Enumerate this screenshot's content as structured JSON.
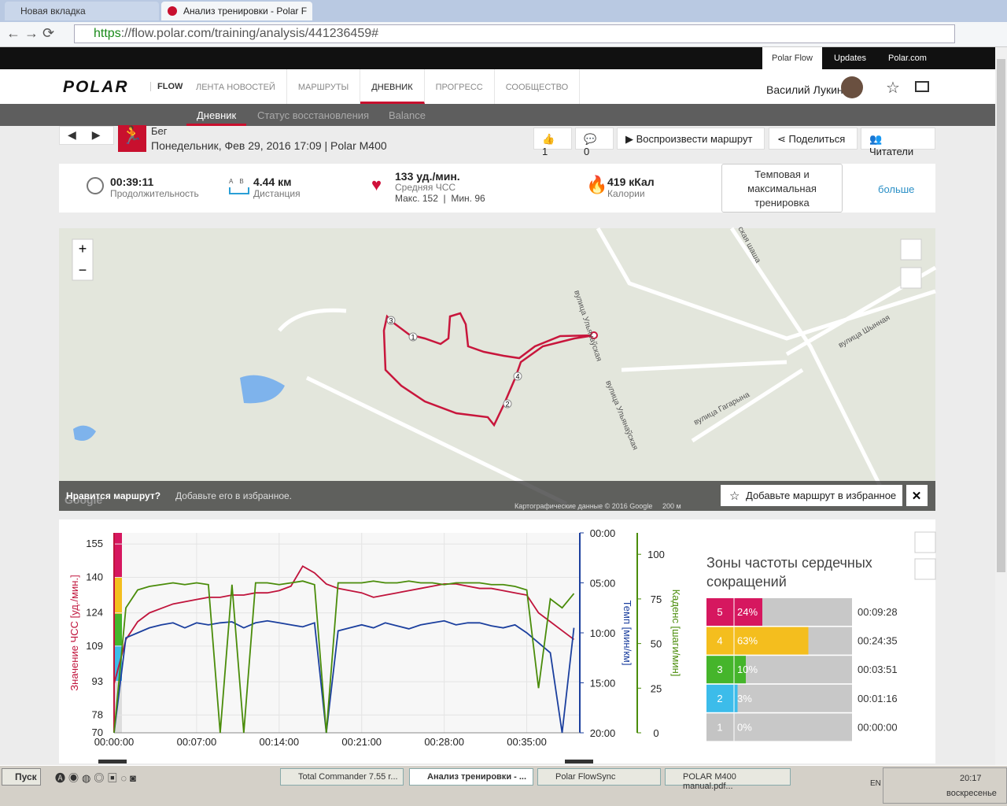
{
  "browser": {
    "tabs": [
      "Новая вкладка",
      "Анализ тренировки - Polar F"
    ],
    "url_scheme": "https",
    "url_rest": "://flow.polar.com/training/analysis/441236459#"
  },
  "top_links": [
    "Polar Flow",
    "Updates",
    "Polar.com"
  ],
  "nav": {
    "logo": "POLAR",
    "product": "FLOW",
    "items": [
      "ЛЕНТА НОВОСТЕЙ",
      "МАРШРУТЫ",
      "ДНЕВНИК",
      "ПРОГРЕСС",
      "СООБЩЕСТВО"
    ],
    "user": "Василий Лукин"
  },
  "subnav": [
    "Дневник",
    "Статус восстановления",
    "Balance"
  ],
  "training": {
    "sport": "Бег",
    "date": "Понедельник, Фев 29, 2016 17:09 | Polar M400",
    "likes": 1,
    "comments": 0,
    "buttons": [
      "Воспроизвести маршрут",
      "Поделиться",
      "Читатели"
    ]
  },
  "summary": {
    "duration": {
      "value": "00:39:11",
      "label": "Продолжительность"
    },
    "distance": {
      "value": "4.44 км",
      "label": "Дистанция",
      "icon_a": "A",
      "icon_b": "B"
    },
    "hr": {
      "value": "133 уд./мин.",
      "label": "Средняя ЧСС",
      "minmax": "Макс. 152  |  Мин. 96"
    },
    "calories": {
      "value": "419 кКал",
      "label": "Калории"
    },
    "target": "Темповая и максимальная тренировка",
    "more": "больше"
  },
  "map": {
    "streets": [
      "ская шаша",
      "вулица Шынная",
      "вулица Гагарына",
      "вулица Ульянаўская",
      "вулица Ульянаўская"
    ],
    "lap_markers": [
      "1",
      "2",
      "3",
      "4"
    ],
    "like_prompt": "Нравится маршрут?",
    "like_hint": "Добавьте его в избранное.",
    "add_favorite": "Добавьте маршрут в избранное",
    "attribution": "Картографические данные © 2016 Google",
    "scale": "200 м",
    "google": "Google"
  },
  "chart_data": {
    "type": "line",
    "x": [
      0,
      1,
      2,
      3,
      4,
      5,
      6,
      7,
      8,
      9,
      10,
      11,
      12,
      13,
      14,
      15,
      16,
      17,
      18,
      19,
      20,
      21,
      22,
      23,
      24,
      25,
      26,
      27,
      28,
      29,
      30,
      31,
      32,
      33,
      34,
      35,
      36,
      37,
      38,
      39
    ],
    "series": [
      {
        "color": "#c0143c",
        "values": [
          92,
          112,
          120,
          124,
          126,
          128,
          129,
          130,
          131,
          131,
          132,
          132,
          133,
          133,
          134,
          136,
          145,
          142,
          137,
          135,
          134,
          133,
          131,
          132,
          133,
          134,
          135,
          136,
          137,
          137,
          136,
          135,
          135,
          134,
          133,
          132,
          124,
          120,
          116,
          112
        ]
      },
      {
        "color": "#1b3f9e",
        "axis": "y2",
        "values": [
          20,
          10.5,
          10,
          9.5,
          9.2,
          9,
          9.5,
          9,
          9.2,
          9,
          8.9,
          9.5,
          9,
          8.8,
          9,
          9.2,
          9.4,
          9,
          20,
          9.8,
          9.5,
          9.2,
          9.5,
          9,
          9.3,
          9.6,
          9.2,
          9,
          8.8,
          9.2,
          9,
          9,
          9.3,
          9.5,
          9.2,
          10,
          11,
          12,
          20,
          9.5
        ]
      },
      {
        "color": "#4a8c0a",
        "axis": "y3",
        "values": [
          0,
          70,
          80,
          82,
          83,
          84,
          83,
          84,
          83,
          0,
          83,
          0,
          84,
          84,
          83,
          84,
          85,
          83,
          0,
          84,
          84,
          84,
          85,
          84,
          84,
          85,
          84,
          84,
          83,
          84,
          84,
          84,
          83,
          83,
          82,
          80,
          25,
          75,
          70,
          78
        ]
      }
    ],
    "xlim": [
      0,
      39.5
    ],
    "xticks": [
      {
        "value": 0,
        "label": "00:00:00"
      },
      {
        "value": 7,
        "label": "00:07:00"
      },
      {
        "value": 14,
        "label": "00:14:00"
      },
      {
        "value": 21,
        "label": "00:21:00"
      },
      {
        "value": 28,
        "label": "00:28:00"
      },
      {
        "value": 35,
        "label": "00:35:00"
      }
    ],
    "ylim": [
      70,
      160
    ],
    "yticks": [
      70,
      78,
      93,
      109,
      124,
      140,
      155
    ],
    "y2lim": [
      20,
      0
    ],
    "y2ticks": [
      {
        "value": 0,
        "label": "00:00"
      },
      {
        "value": 5,
        "label": "05:00"
      },
      {
        "value": 10,
        "label": "10:00"
      },
      {
        "value": 15,
        "label": "15:00"
      },
      {
        "value": 20,
        "label": "20:00"
      }
    ],
    "y3lim": [
      0,
      112
    ],
    "y3ticks": [
      0,
      25,
      50,
      75,
      100
    ],
    "ylabel": "Значение ЧСС [уд./мин.]",
    "y2label": "Темп [мин/км]",
    "y3label": "Каденс [шаги/мин]",
    "grid": true
  },
  "zones": {
    "title": "Зоны частоты сердечных сокращений",
    "xlim": [
      0,
      100
    ],
    "rows": [
      {
        "zone": 5,
        "percent": 24,
        "percent_label": "24%",
        "time": "00:09:28",
        "color": "#d6175f"
      },
      {
        "zone": 4,
        "percent": 63,
        "percent_label": "63%",
        "time": "00:24:35",
        "color": "#f4be1e"
      },
      {
        "zone": 3,
        "percent": 10,
        "percent_label": "10%",
        "time": "00:03:51",
        "color": "#45b52b"
      },
      {
        "zone": 2,
        "percent": 3,
        "percent_label": "3%",
        "time": "00:01:16",
        "color": "#3cbcea"
      },
      {
        "zone": 1,
        "percent": 0,
        "percent_label": "0%",
        "time": "00:00:00",
        "color": "#c4c4c4"
      }
    ]
  },
  "taskbar": {
    "start": "Пуск",
    "tasks": [
      "Total Commander 7.55 r...",
      "Анализ тренировки - ...",
      "Polar FlowSync",
      "POLAR M400 manual.pdf..."
    ],
    "lang": "EN",
    "clock": "20:17",
    "day": "воскресенье"
  }
}
